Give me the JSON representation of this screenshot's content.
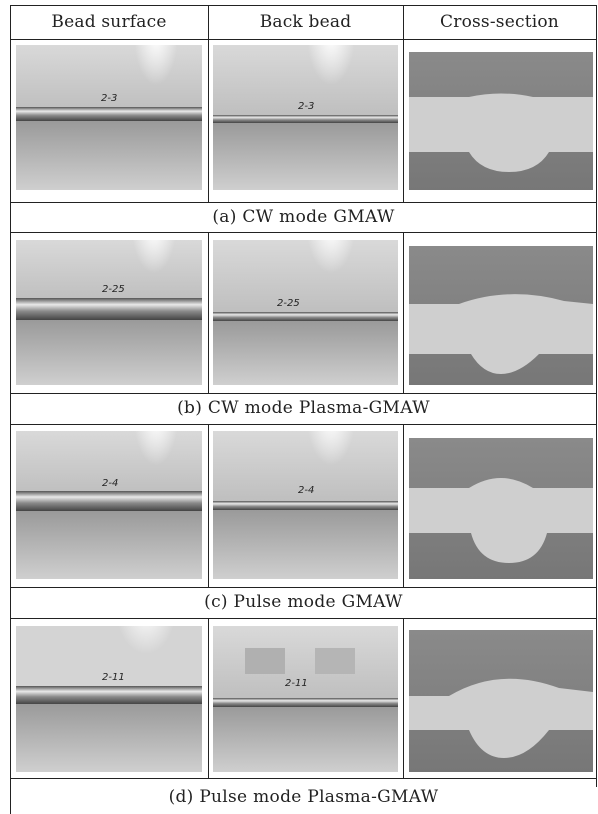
{
  "headers": [
    "Bead surface",
    "Back bead",
    "Cross-section"
  ],
  "rows": [
    {
      "caption": "(a) CW mode GMAW",
      "surface_mark": "2-3",
      "back_mark": "2-3"
    },
    {
      "caption": "(b) CW mode Plasma-GMAW",
      "surface_mark": "2-25",
      "back_mark": "2-25"
    },
    {
      "caption": "(c) Pulse mode GMAW",
      "surface_mark": "2-4",
      "back_mark": "2-4"
    },
    {
      "caption": "(d) Pulse mode Plasma-GMAW",
      "surface_mark": "2-11",
      "back_mark": "2-11"
    }
  ]
}
